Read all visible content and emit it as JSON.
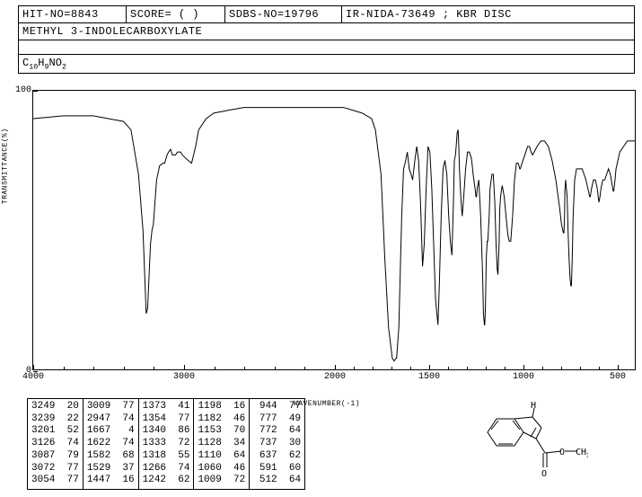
{
  "header": {
    "hit_no": "HIT-NO=8843",
    "score": "SCORE=  (  )",
    "sdbs_no": "SDBS-NO=19796",
    "ir_info": "IR-NIDA-73649 ; KBR DISC",
    "compound": "METHYL 3-INDOLECARBOXYLATE",
    "formula_html": "C<sub>10</sub>H<sub>9</sub>NO<sub>2</sub>"
  },
  "chart": {
    "ylabel": "TRANSMITTANCE(%)",
    "xlabel": "WAVENUMBER(-1)",
    "ylim": [
      0,
      100
    ],
    "xlim": [
      4000,
      400
    ],
    "xticks": [
      4000,
      3000,
      2000,
      1500,
      1000,
      500
    ],
    "yticks": [
      0,
      100
    ],
    "line_color": "#000000",
    "background_color": "#ffffff",
    "spectrum": [
      [
        4000,
        90
      ],
      [
        3800,
        91
      ],
      [
        3600,
        91
      ],
      [
        3500,
        90
      ],
      [
        3400,
        89
      ],
      [
        3350,
        86
      ],
      [
        3300,
        70
      ],
      [
        3270,
        50
      ],
      [
        3249,
        20
      ],
      [
        3239,
        22
      ],
      [
        3220,
        45
      ],
      [
        3210,
        50
      ],
      [
        3201,
        52
      ],
      [
        3180,
        68
      ],
      [
        3160,
        73
      ],
      [
        3140,
        74
      ],
      [
        3126,
        74
      ],
      [
        3110,
        77
      ],
      [
        3100,
        78
      ],
      [
        3087,
        79
      ],
      [
        3075,
        77
      ],
      [
        3072,
        77
      ],
      [
        3060,
        77
      ],
      [
        3054,
        77
      ],
      [
        3040,
        78
      ],
      [
        3020,
        78
      ],
      [
        3009,
        77
      ],
      [
        2990,
        76
      ],
      [
        2970,
        75
      ],
      [
        2947,
        74
      ],
      [
        2920,
        80
      ],
      [
        2900,
        86
      ],
      [
        2850,
        90
      ],
      [
        2800,
        92
      ],
      [
        2700,
        93
      ],
      [
        2600,
        94
      ],
      [
        2500,
        94
      ],
      [
        2400,
        94
      ],
      [
        2300,
        94
      ],
      [
        2200,
        94
      ],
      [
        2100,
        94
      ],
      [
        2000,
        94
      ],
      [
        1950,
        94
      ],
      [
        1900,
        93
      ],
      [
        1850,
        92
      ],
      [
        1800,
        90
      ],
      [
        1780,
        86
      ],
      [
        1750,
        70
      ],
      [
        1730,
        40
      ],
      [
        1710,
        15
      ],
      [
        1690,
        4
      ],
      [
        1680,
        3
      ],
      [
        1670,
        4
      ],
      [
        1667,
        4
      ],
      [
        1655,
        15
      ],
      [
        1640,
        55
      ],
      [
        1630,
        72
      ],
      [
        1622,
        74
      ],
      [
        1610,
        78
      ],
      [
        1600,
        72
      ],
      [
        1590,
        70
      ],
      [
        1582,
        68
      ],
      [
        1570,
        75
      ],
      [
        1560,
        80
      ],
      [
        1550,
        75
      ],
      [
        1540,
        60
      ],
      [
        1529,
        37
      ],
      [
        1520,
        45
      ],
      [
        1510,
        65
      ],
      [
        1500,
        80
      ],
      [
        1490,
        78
      ],
      [
        1480,
        65
      ],
      [
        1470,
        45
      ],
      [
        1460,
        25
      ],
      [
        1450,
        18
      ],
      [
        1447,
        16
      ],
      [
        1440,
        30
      ],
      [
        1430,
        55
      ],
      [
        1420,
        72
      ],
      [
        1410,
        75
      ],
      [
        1400,
        70
      ],
      [
        1390,
        55
      ],
      [
        1380,
        45
      ],
      [
        1373,
        41
      ],
      [
        1365,
        60
      ],
      [
        1360,
        75
      ],
      [
        1354,
        77
      ],
      [
        1348,
        82
      ],
      [
        1345,
        85
      ],
      [
        1340,
        86
      ],
      [
        1336,
        80
      ],
      [
        1333,
        72
      ],
      [
        1328,
        65
      ],
      [
        1322,
        58
      ],
      [
        1318,
        55
      ],
      [
        1310,
        62
      ],
      [
        1300,
        72
      ],
      [
        1290,
        78
      ],
      [
        1280,
        78
      ],
      [
        1270,
        76
      ],
      [
        1266,
        74
      ],
      [
        1260,
        70
      ],
      [
        1250,
        65
      ],
      [
        1245,
        62
      ],
      [
        1242,
        62
      ],
      [
        1238,
        65
      ],
      [
        1230,
        68
      ],
      [
        1220,
        55
      ],
      [
        1210,
        35
      ],
      [
        1205,
        20
      ],
      [
        1200,
        16
      ],
      [
        1198,
        16
      ],
      [
        1195,
        22
      ],
      [
        1190,
        40
      ],
      [
        1185,
        46
      ],
      [
        1182,
        46
      ],
      [
        1175,
        55
      ],
      [
        1170,
        65
      ],
      [
        1160,
        70
      ],
      [
        1153,
        70
      ],
      [
        1145,
        60
      ],
      [
        1138,
        45
      ],
      [
        1132,
        36
      ],
      [
        1128,
        34
      ],
      [
        1122,
        45
      ],
      [
        1118,
        58
      ],
      [
        1114,
        62
      ],
      [
        1110,
        64
      ],
      [
        1105,
        66
      ],
      [
        1095,
        62
      ],
      [
        1085,
        55
      ],
      [
        1075,
        48
      ],
      [
        1068,
        46
      ],
      [
        1060,
        46
      ],
      [
        1050,
        55
      ],
      [
        1040,
        68
      ],
      [
        1030,
        74
      ],
      [
        1020,
        74
      ],
      [
        1012,
        72
      ],
      [
        1009,
        72
      ],
      [
        1000,
        74
      ],
      [
        990,
        76
      ],
      [
        980,
        78
      ],
      [
        970,
        80
      ],
      [
        960,
        80
      ],
      [
        952,
        78
      ],
      [
        944,
        77
      ],
      [
        935,
        78
      ],
      [
        920,
        80
      ],
      [
        900,
        82
      ],
      [
        880,
        82
      ],
      [
        860,
        80
      ],
      [
        840,
        75
      ],
      [
        820,
        68
      ],
      [
        800,
        58
      ],
      [
        790,
        52
      ],
      [
        780,
        49
      ],
      [
        777,
        49
      ],
      [
        774,
        55
      ],
      [
        772,
        64
      ],
      [
        768,
        68
      ],
      [
        760,
        62
      ],
      [
        755,
        50
      ],
      [
        750,
        40
      ],
      [
        745,
        33
      ],
      [
        740,
        30
      ],
      [
        737,
        30
      ],
      [
        733,
        40
      ],
      [
        728,
        55
      ],
      [
        720,
        68
      ],
      [
        710,
        72
      ],
      [
        700,
        72
      ],
      [
        690,
        72
      ],
      [
        680,
        72
      ],
      [
        670,
        70
      ],
      [
        660,
        68
      ],
      [
        650,
        65
      ],
      [
        640,
        62
      ],
      [
        637,
        62
      ],
      [
        630,
        65
      ],
      [
        620,
        68
      ],
      [
        610,
        68
      ],
      [
        600,
        65
      ],
      [
        595,
        62
      ],
      [
        591,
        60
      ],
      [
        585,
        62
      ],
      [
        580,
        65
      ],
      [
        570,
        68
      ],
      [
        560,
        68
      ],
      [
        550,
        70
      ],
      [
        540,
        72
      ],
      [
        530,
        70
      ],
      [
        520,
        66
      ],
      [
        515,
        64
      ],
      [
        512,
        64
      ],
      [
        505,
        68
      ],
      [
        500,
        72
      ],
      [
        480,
        78
      ],
      [
        460,
        80
      ],
      [
        440,
        82
      ],
      [
        420,
        82
      ],
      [
        400,
        82
      ]
    ]
  },
  "peaks": {
    "columns": [
      [
        [
          "3249",
          "20"
        ],
        [
          "3239",
          "22"
        ],
        [
          "3201",
          "52"
        ],
        [
          "3126",
          "74"
        ],
        [
          "3087",
          "79"
        ],
        [
          "3072",
          "77"
        ],
        [
          "3054",
          "77"
        ]
      ],
      [
        [
          "3009",
          "77"
        ],
        [
          "2947",
          "74"
        ],
        [
          "1667",
          " 4"
        ],
        [
          "1622",
          "74"
        ],
        [
          "1582",
          "68"
        ],
        [
          "1529",
          "37"
        ],
        [
          "1447",
          "16"
        ]
      ],
      [
        [
          "1373",
          "41"
        ],
        [
          "1354",
          "77"
        ],
        [
          "1340",
          "86"
        ],
        [
          "1333",
          "72"
        ],
        [
          "1318",
          "55"
        ],
        [
          "1266",
          "74"
        ],
        [
          "1242",
          "62"
        ]
      ],
      [
        [
          "1198",
          "16"
        ],
        [
          "1182",
          "46"
        ],
        [
          "1153",
          "70"
        ],
        [
          "1128",
          "34"
        ],
        [
          "1110",
          "64"
        ],
        [
          "1060",
          "46"
        ],
        [
          "1009",
          "72"
        ]
      ],
      [
        [
          " 944",
          "77"
        ],
        [
          " 777",
          "49"
        ],
        [
          " 772",
          "64"
        ],
        [
          " 737",
          "30"
        ],
        [
          " 637",
          "62"
        ],
        [
          " 591",
          "60"
        ],
        [
          " 512",
          "64"
        ]
      ]
    ]
  },
  "molecule": {
    "h_label": "H",
    "ch3_label": "CH",
    "ch3_sub": "3",
    "o_label": "O",
    "o2_label": "O"
  }
}
